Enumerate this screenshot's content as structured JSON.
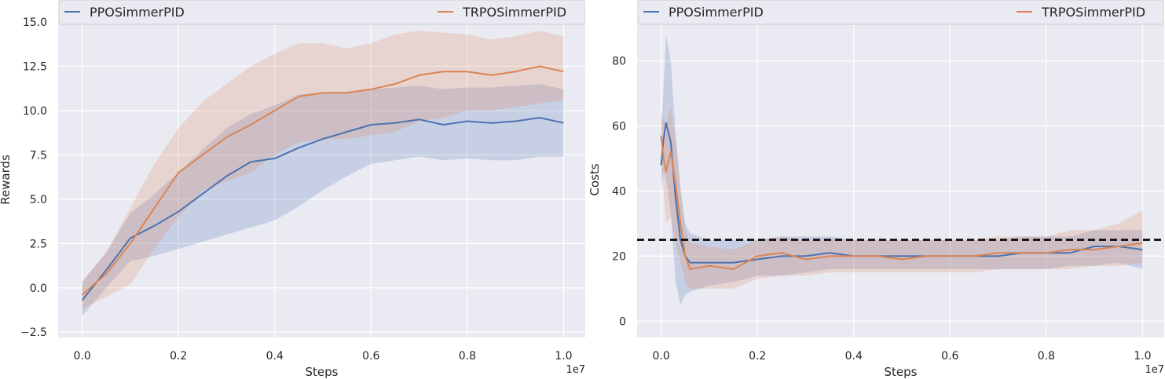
{
  "chart_data": [
    {
      "type": "line",
      "xlabel": "Steps",
      "ylabel": "Rewards",
      "x_offset_label": "1e7",
      "xlim": [
        -0.05,
        1.045
      ],
      "ylim": [
        -2.8,
        15.0
      ],
      "xticks": [
        0.0,
        0.2,
        0.4,
        0.6,
        0.8,
        1.0
      ],
      "xtick_labels": [
        "0.0",
        "0.2",
        "0.4",
        "0.6",
        "0.8",
        "1.0"
      ],
      "yticks": [
        -2.5,
        0.0,
        2.5,
        5.0,
        7.5,
        10.0,
        12.5,
        15.0
      ],
      "ytick_labels": [
        "−2.5",
        "0.0",
        "2.5",
        "5.0",
        "7.5",
        "10.0",
        "12.5",
        "15.0"
      ],
      "grid": true,
      "legend_position": "top",
      "background": "#eaeaf2",
      "series": [
        {
          "name": "PPOSimmerPID",
          "color": "#4c72b0",
          "x": [
            0.0,
            0.05,
            0.1,
            0.15,
            0.2,
            0.25,
            0.3,
            0.35,
            0.4,
            0.45,
            0.5,
            0.55,
            0.6,
            0.65,
            0.7,
            0.75,
            0.8,
            0.85,
            0.9,
            0.95,
            1.0
          ],
          "y": [
            -0.7,
            1.0,
            2.8,
            3.5,
            4.3,
            5.3,
            6.3,
            7.1,
            7.3,
            7.9,
            8.4,
            8.8,
            9.2,
            9.3,
            9.5,
            9.2,
            9.4,
            9.3,
            9.4,
            9.6,
            9.3
          ],
          "lower": [
            -1.6,
            0.0,
            1.5,
            1.8,
            2.2,
            2.6,
            3.0,
            3.4,
            3.8,
            4.6,
            5.5,
            6.3,
            7.0,
            7.2,
            7.4,
            7.2,
            7.3,
            7.2,
            7.2,
            7.4,
            7.4
          ],
          "upper": [
            0.3,
            2.0,
            4.2,
            5.3,
            6.5,
            7.8,
            9.0,
            9.8,
            10.3,
            10.9,
            11.0,
            11.0,
            11.2,
            11.3,
            11.4,
            11.2,
            11.3,
            11.3,
            11.4,
            11.5,
            11.2
          ]
        },
        {
          "name": "TRPOSimmerPID",
          "color": "#dd8452",
          "x": [
            0.0,
            0.05,
            0.1,
            0.15,
            0.2,
            0.25,
            0.3,
            0.35,
            0.4,
            0.45,
            0.5,
            0.55,
            0.6,
            0.65,
            0.7,
            0.75,
            0.8,
            0.85,
            0.9,
            0.95,
            1.0
          ],
          "y": [
            -0.4,
            0.8,
            2.5,
            4.5,
            6.5,
            7.5,
            8.5,
            9.2,
            10.0,
            10.8,
            11.0,
            11.0,
            11.2,
            11.5,
            12.0,
            12.2,
            12.2,
            12.0,
            12.2,
            12.5,
            12.2
          ],
          "lower": [
            -1.2,
            -0.5,
            0.2,
            2.2,
            4.0,
            5.5,
            6.0,
            6.5,
            7.5,
            8.2,
            8.4,
            8.4,
            8.6,
            8.8,
            9.4,
            9.6,
            10.0,
            10.0,
            10.2,
            10.4,
            10.6
          ],
          "upper": [
            0.4,
            2.0,
            4.5,
            7.0,
            9.0,
            10.5,
            11.5,
            12.5,
            13.2,
            13.8,
            13.8,
            13.5,
            13.8,
            14.3,
            14.5,
            14.4,
            14.3,
            14.0,
            14.2,
            14.5,
            14.2
          ]
        }
      ]
    },
    {
      "type": "line",
      "xlabel": "Steps",
      "ylabel": "Costs",
      "x_offset_label": "1e7",
      "xlim": [
        -0.05,
        1.045
      ],
      "ylim": [
        -5,
        92
      ],
      "xticks": [
        0.0,
        0.2,
        0.4,
        0.6,
        0.8,
        1.0
      ],
      "xtick_labels": [
        "0.0",
        "0.2",
        "0.4",
        "0.6",
        "0.8",
        "1.0"
      ],
      "yticks": [
        0,
        20,
        40,
        60,
        80
      ],
      "ytick_labels": [
        "0",
        "20",
        "40",
        "60",
        "80"
      ],
      "grid": true,
      "legend_position": "top",
      "background": "#eaeaf2",
      "threshold": 25,
      "series": [
        {
          "name": "PPOSimmerPID",
          "color": "#4c72b0",
          "x": [
            0.0,
            0.005,
            0.01,
            0.02,
            0.03,
            0.04,
            0.05,
            0.06,
            0.1,
            0.15,
            0.2,
            0.25,
            0.3,
            0.35,
            0.4,
            0.45,
            0.5,
            0.55,
            0.6,
            0.65,
            0.7,
            0.75,
            0.8,
            0.85,
            0.9,
            0.95,
            1.0
          ],
          "y": [
            48,
            56,
            61,
            55,
            38,
            25,
            20,
            18,
            18,
            18,
            19,
            20,
            20,
            21,
            20,
            20,
            20,
            20,
            20,
            20,
            20,
            21,
            21,
            21,
            23,
            23,
            22
          ],
          "lower": [
            40,
            46,
            44,
            33,
            12,
            5,
            8,
            9,
            11,
            12,
            14,
            14,
            15,
            16,
            16,
            16,
            16,
            16,
            16,
            16,
            16,
            16,
            16,
            17,
            17,
            18,
            16
          ],
          "upper": [
            58,
            72,
            88,
            80,
            58,
            40,
            30,
            27,
            25,
            25,
            25,
            26,
            26,
            26,
            25,
            25,
            25,
            25,
            25,
            25,
            25,
            26,
            26,
            26,
            28,
            28,
            28
          ]
        },
        {
          "name": "TRPOSimmerPID",
          "color": "#dd8452",
          "x": [
            0.0,
            0.005,
            0.01,
            0.02,
            0.03,
            0.04,
            0.05,
            0.06,
            0.1,
            0.15,
            0.2,
            0.25,
            0.3,
            0.35,
            0.4,
            0.45,
            0.5,
            0.55,
            0.6,
            0.65,
            0.7,
            0.75,
            0.8,
            0.85,
            0.9,
            0.95,
            1.0
          ],
          "y": [
            57,
            50,
            46,
            52,
            42,
            30,
            20,
            16,
            17,
            16,
            20,
            21,
            19,
            20,
            20,
            20,
            19,
            20,
            20,
            20,
            21,
            21,
            21,
            22,
            22,
            23,
            24
          ],
          "lower": [
            50,
            40,
            30,
            32,
            24,
            18,
            12,
            10,
            10,
            10,
            13,
            14,
            14,
            15,
            15,
            15,
            15,
            15,
            15,
            15,
            16,
            16,
            16,
            16,
            17,
            17,
            18
          ],
          "upper": [
            64,
            62,
            60,
            66,
            56,
            42,
            28,
            24,
            23,
            22,
            25,
            26,
            25,
            25,
            25,
            25,
            25,
            25,
            25,
            25,
            26,
            26,
            26,
            28,
            28,
            30,
            34
          ]
        }
      ]
    }
  ]
}
